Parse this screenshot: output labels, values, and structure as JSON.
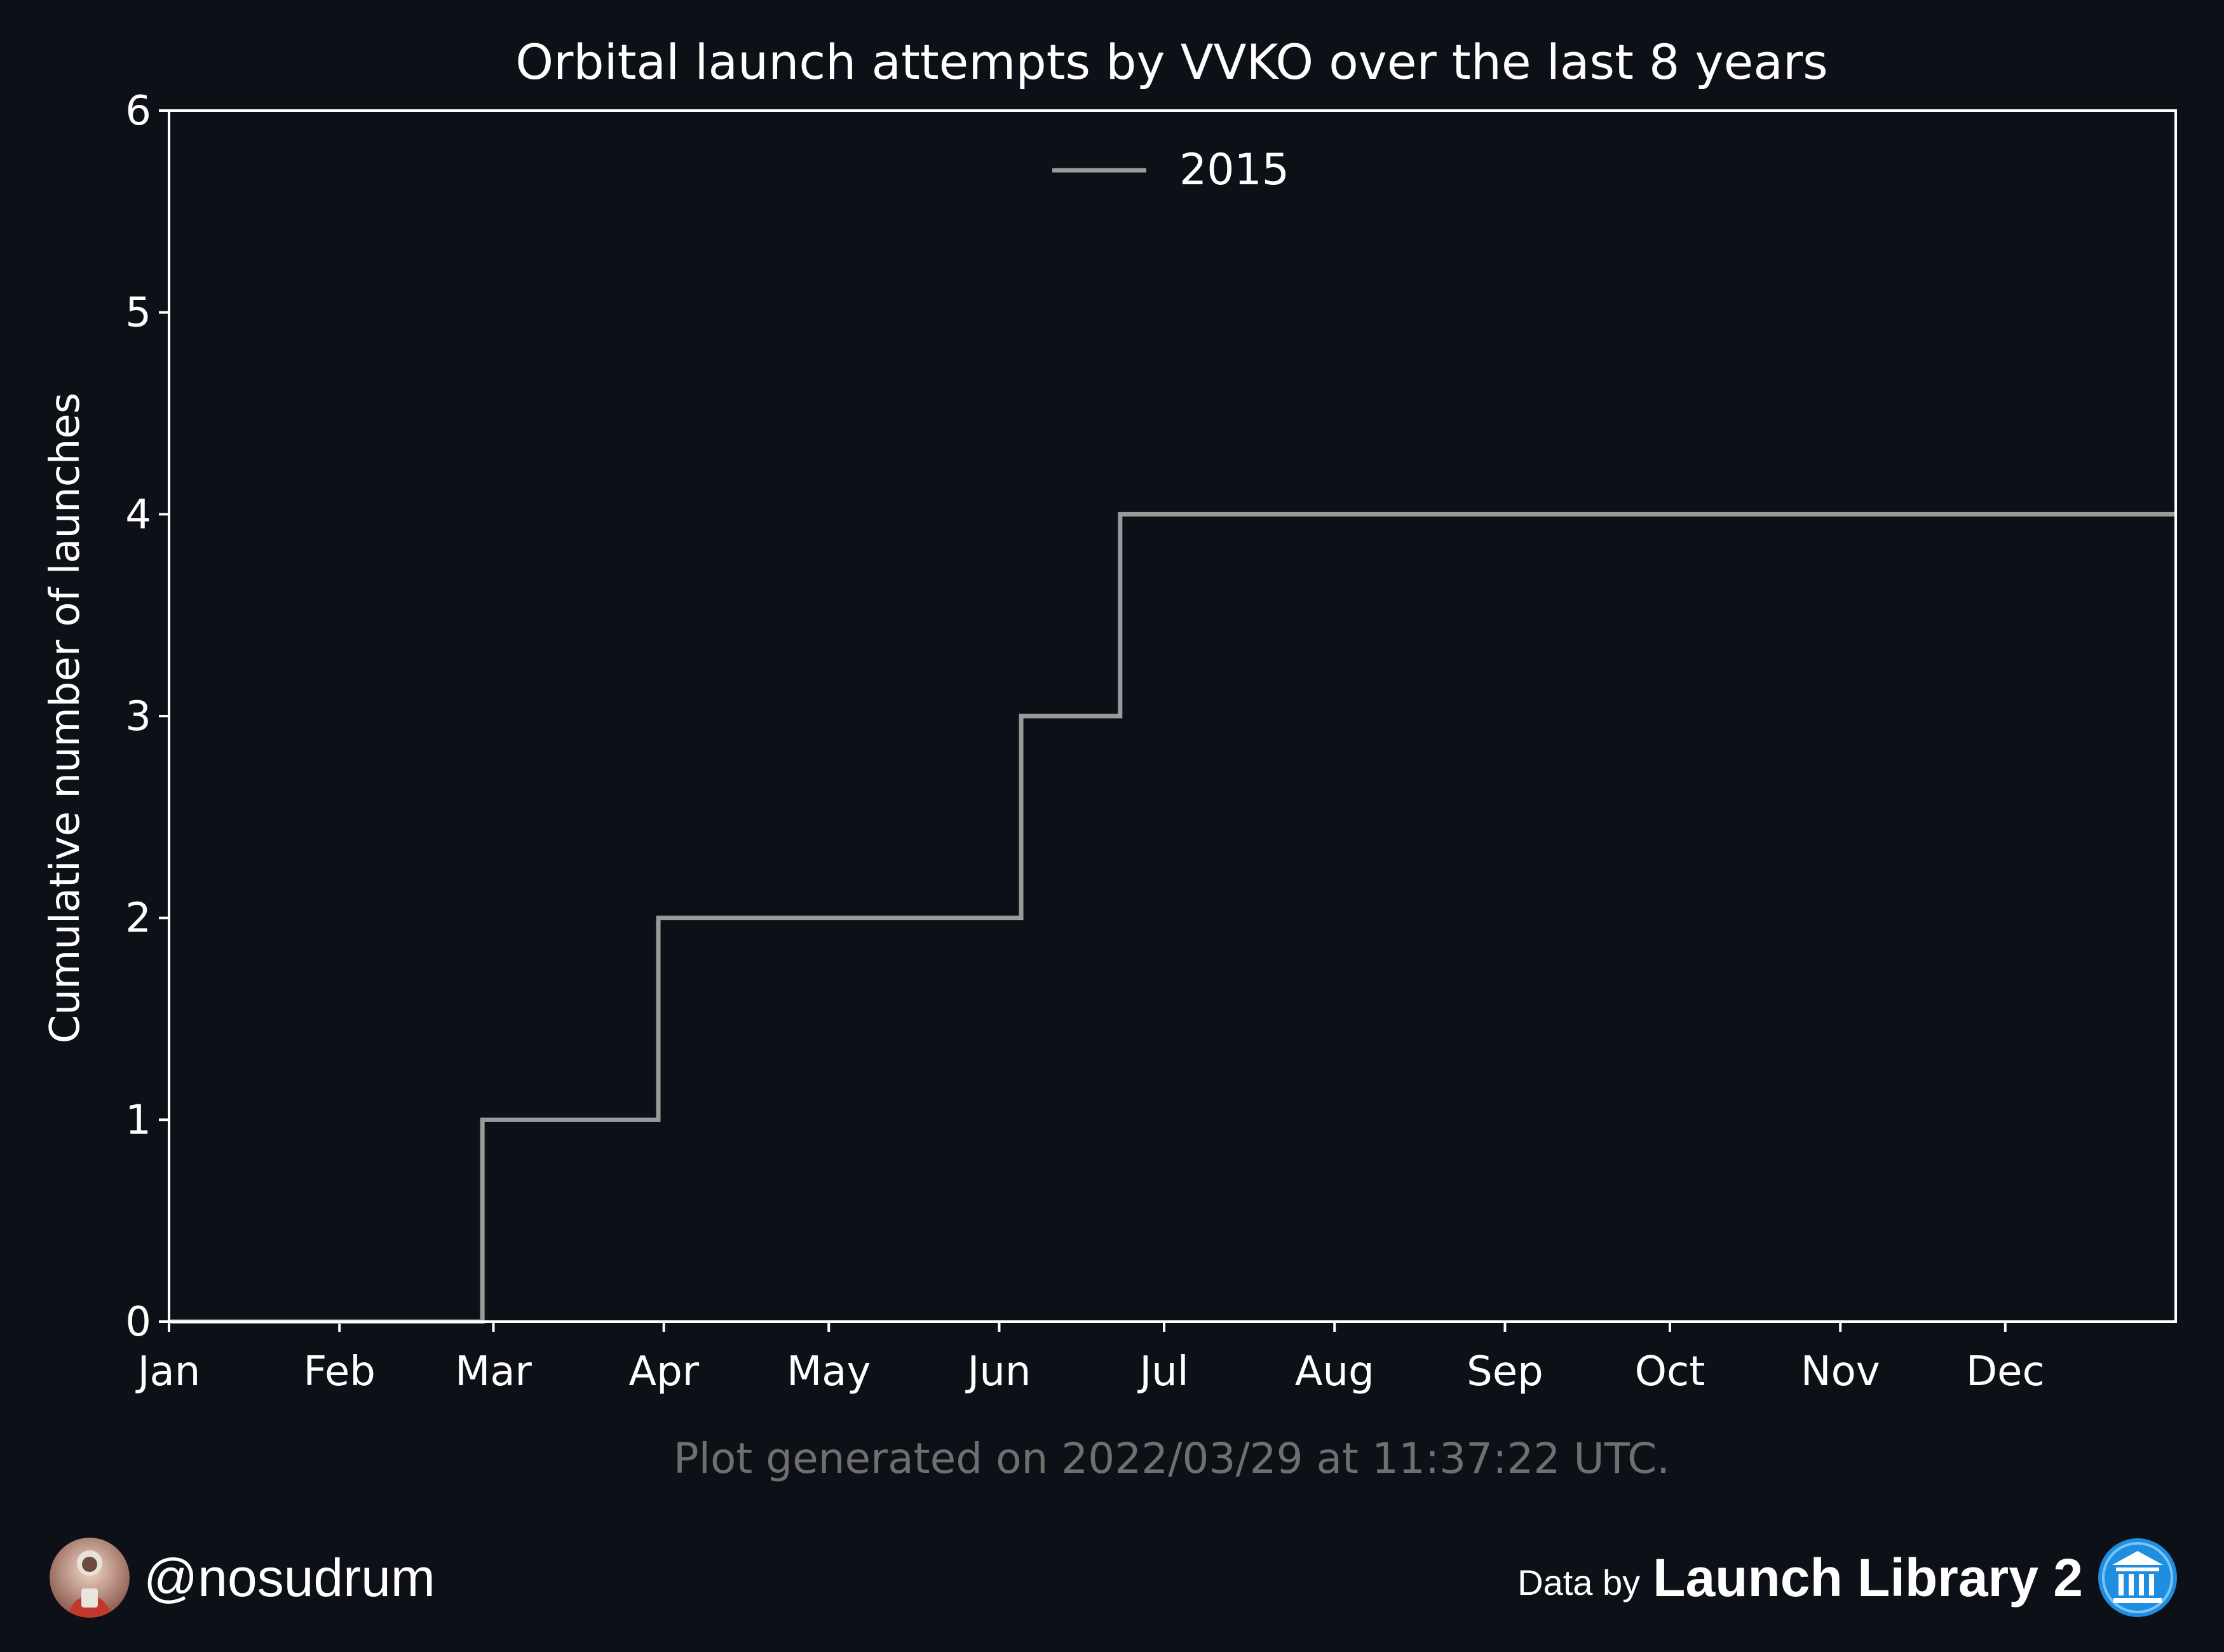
{
  "chart_data": {
    "type": "line",
    "step": "post",
    "title": "Orbital launch attempts by VVKO over the last 8 years",
    "xlabel": "",
    "ylabel": "Cumulative number of launches",
    "x_tick_labels": [
      "Jan",
      "Feb",
      "Mar",
      "Apr",
      "May",
      "Jun",
      "Jul",
      "Aug",
      "Sep",
      "Oct",
      "Nov",
      "Dec"
    ],
    "xlim": [
      "2015-01-01",
      "2016-01-01"
    ],
    "ylim": [
      0,
      6
    ],
    "y_ticks": [
      0,
      1,
      2,
      3,
      4,
      5,
      6
    ],
    "grid": false,
    "legend_position": "top-center",
    "series": [
      {
        "name": "2015",
        "color": "#9a9a9a",
        "x": [
          "2015-01-01",
          "2015-02-27",
          "2015-03-31",
          "2015-06-05",
          "2015-06-23",
          "2016-01-01"
        ],
        "y": [
          0,
          1,
          2,
          3,
          4,
          4
        ]
      }
    ]
  },
  "footnote": "Plot generated on 2022/03/29 at 11:37:22 UTC.",
  "author": {
    "handle": "@nosudrum",
    "avatar_icon": "astronaut-avatar-icon"
  },
  "credit": {
    "prefix": "Data by",
    "name": "Launch Library 2",
    "logo_icon": "launch-library-logo-icon"
  },
  "colors": {
    "background": "#0d1017",
    "text": "#ffffff",
    "axes": "#ffffff",
    "footnote": "#6f6f6f",
    "accent": "#1e8fe0"
  }
}
